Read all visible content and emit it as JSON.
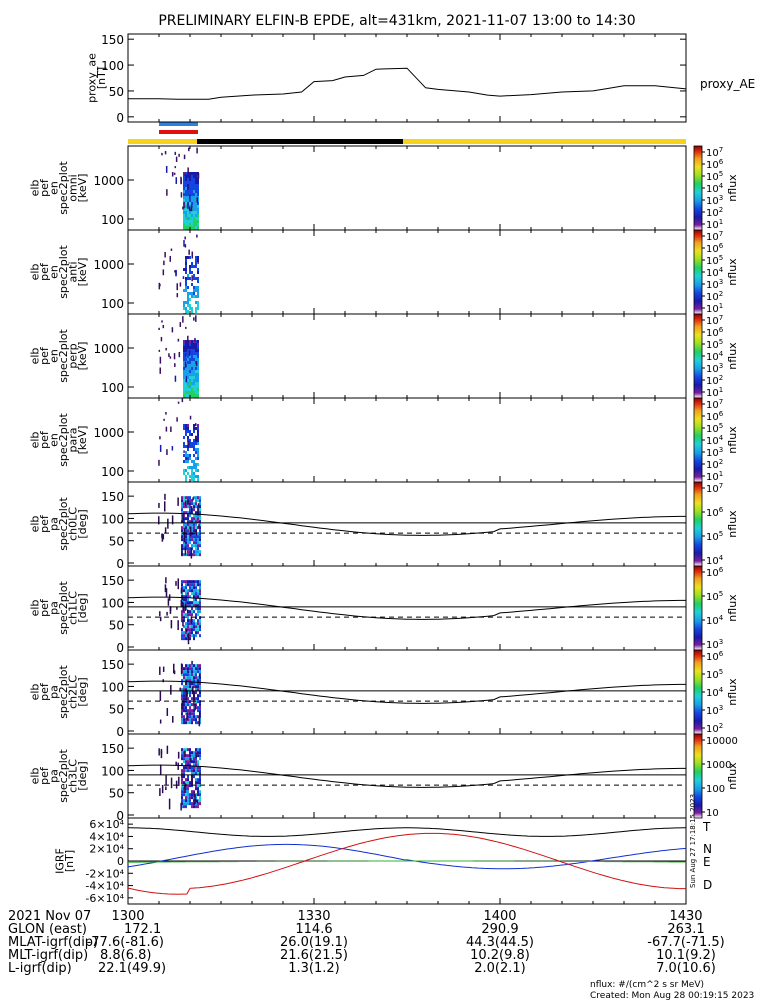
{
  "title": "PRELIMINARY ELFIN-B EPDE, alt=431km, 2021-11-07 13:00 to 14:30",
  "colors": {
    "bar_yellow": "#f6d21a",
    "bar_black": "#000000",
    "red_bar": "#e01010",
    "blue_ticks": "#2f7fe0",
    "colorbar": [
      "#ffffff",
      "#7a1fa0",
      "#1a1aa8",
      "#1545e0",
      "#18a0e8",
      "#20d0d8",
      "#20d060",
      "#9ae020",
      "#ece020",
      "#f0a020",
      "#e03010",
      "#900000"
    ],
    "igrf": {
      "T": "#000000",
      "N": "#1030d0",
      "E": "#30b030",
      "D": "#d01010"
    }
  },
  "chart_data": [
    {
      "type": "line",
      "id": "proxy_ae",
      "ylabel": [
        "proxy_ae",
        "[nT]"
      ],
      "yticks": [
        "0",
        "50",
        "100",
        "150"
      ],
      "ylim": [
        -10,
        160
      ],
      "legend": "proxy_AE",
      "series": [
        {
          "name": "proxy_AE",
          "x": [
            0,
            5,
            8,
            13,
            15,
            20,
            25,
            28,
            30,
            33,
            35,
            38,
            40,
            45,
            48,
            50,
            55,
            58,
            60,
            65,
            70,
            75,
            77,
            80,
            85,
            90
          ],
          "values": [
            35,
            35,
            34,
            34,
            38,
            42,
            44,
            48,
            68,
            70,
            77,
            80,
            92,
            94,
            56,
            53,
            48,
            42,
            40,
            43,
            48,
            50,
            54,
            60,
            60,
            54
          ]
        }
      ]
    },
    {
      "type": "heatmap",
      "id": "en_omni",
      "ylabel": [
        "elb",
        "pef",
        "en",
        "spec2plot",
        "omni",
        "[keV]"
      ],
      "yticks": [
        "100",
        "1000"
      ],
      "colorbar": {
        "label": "nflux",
        "ticks": [
          "10^1",
          "10^2",
          "10^3",
          "10^4",
          "10^5",
          "10^6",
          "10^7"
        ]
      }
    },
    {
      "type": "heatmap",
      "id": "en_anti",
      "ylabel": [
        "elb",
        "pef",
        "en",
        "spec2plot",
        "anti",
        "[keV]"
      ],
      "yticks": [
        "100",
        "1000"
      ],
      "colorbar": {
        "label": "nflux",
        "ticks": [
          "10^1",
          "10^2",
          "10^3",
          "10^4",
          "10^5",
          "10^6",
          "10^7"
        ]
      }
    },
    {
      "type": "heatmap",
      "id": "en_perp",
      "ylabel": [
        "elb",
        "pef",
        "en",
        "spec2plot",
        "perp",
        "[keV]"
      ],
      "yticks": [
        "100",
        "1000"
      ],
      "colorbar": {
        "label": "nflux",
        "ticks": [
          "10^1",
          "10^2",
          "10^3",
          "10^4",
          "10^5",
          "10^6",
          "10^7"
        ]
      }
    },
    {
      "type": "heatmap",
      "id": "en_para",
      "ylabel": [
        "elb",
        "pef",
        "en",
        "spec2plot",
        "para",
        "[keV]"
      ],
      "yticks": [
        "100",
        "1000"
      ],
      "colorbar": {
        "label": "nflux",
        "ticks": [
          "10^1",
          "10^2",
          "10^3",
          "10^4",
          "10^5",
          "10^6",
          "10^7"
        ]
      }
    },
    {
      "type": "heatmap",
      "id": "pa_ch0",
      "ylabel": [
        "elb",
        "pef",
        "pa",
        "spec2plot",
        "ch0LC",
        "[deg]"
      ],
      "yticks": [
        "0",
        "50",
        "100",
        "150"
      ],
      "colorbar": {
        "label": "nflux",
        "ticks": [
          "10^4",
          "10^5",
          "10^6",
          "10^7"
        ]
      }
    },
    {
      "type": "heatmap",
      "id": "pa_ch1",
      "ylabel": [
        "elb",
        "pef",
        "pa",
        "spec2plot",
        "ch1LC",
        "[deg]"
      ],
      "yticks": [
        "0",
        "50",
        "100",
        "150"
      ],
      "colorbar": {
        "label": "nflux",
        "ticks": [
          "10^3",
          "10^4",
          "10^5",
          "10^6"
        ]
      }
    },
    {
      "type": "heatmap",
      "id": "pa_ch2",
      "ylabel": [
        "elb",
        "pef",
        "pa",
        "spec2plot",
        "ch2LC",
        "[deg]"
      ],
      "yticks": [
        "0",
        "50",
        "100",
        "150"
      ],
      "colorbar": {
        "label": "nflux",
        "ticks": [
          "10^2",
          "10^3",
          "10^4",
          "10^5",
          "10^6"
        ]
      }
    },
    {
      "type": "heatmap",
      "id": "pa_ch3",
      "ylabel": [
        "elb",
        "pef",
        "pa",
        "spec2plot",
        "ch3LC",
        "[deg]"
      ],
      "yticks": [
        "0",
        "50",
        "100",
        "150"
      ],
      "colorbar": {
        "label": "nflux",
        "ticks": [
          "10",
          "100",
          "1000",
          "10000"
        ]
      }
    },
    {
      "type": "line",
      "id": "igrf",
      "ylabel": [
        "IGRF",
        "[nT]"
      ],
      "yticks": [
        "-6×10⁴",
        "-4×10⁴",
        "-2×10⁴",
        "0",
        "2×10⁴",
        "4×10⁴",
        "6×10⁴"
      ],
      "ylim": [
        -70000,
        70000
      ],
      "legend": [
        "T",
        "N",
        "E",
        "D"
      ],
      "side_text": "Sun Aug 27 17:18:15 2023"
    }
  ],
  "xaxis": {
    "tick_labels": [
      "1300",
      "1330",
      "1400",
      "1430"
    ],
    "rows": [
      {
        "label": "2021 Nov 07",
        "values": [
          "",
          "",
          "",
          ""
        ]
      },
      {
        "label": "GLON (east)",
        "values": [
          "172.1",
          "114.6",
          "290.9",
          "263.1"
        ]
      },
      {
        "label": "MLAT-igrf(dip)",
        "values": [
          "-77.6(-81.6)",
          "26.0(19.1)",
          "44.3(44.5)",
          "-67.7(-71.5)"
        ]
      },
      {
        "label": "MLT-igrf(dip)",
        "values": [
          "8.8(6.8)",
          "21.6(21.5)",
          "10.2(9.8)",
          "10.1(9.2)"
        ]
      },
      {
        "label": "L-igrf(dip)",
        "values": [
          "22.1(49.9)",
          "1.3(1.2)",
          "2.0(2.1)",
          "7.0(10.6)"
        ]
      }
    ]
  },
  "footer": {
    "units": "nflux: #/(cm^2 s sr MeV)",
    "created": "Created: Mon Aug 28 00:19:15 2023"
  }
}
